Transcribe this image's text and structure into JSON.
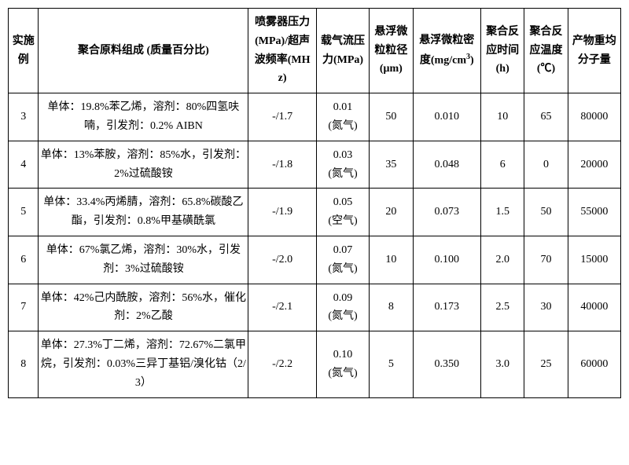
{
  "headers": {
    "h1": "实施例",
    "h2": "聚合原料组成\n(质量百分比)",
    "h3": "喷雾器压力(MPa)/超声波频率(MHz)",
    "h4": "载气流压力(MPa)",
    "h5": "悬浮微粒粒径(μm)",
    "h6_a": "悬浮微粒密度(mg/cm",
    "h6_b": ")",
    "h7": "聚合反应时间(h)",
    "h8": "聚合反应温度(℃)",
    "h9": "产物重均分子量"
  },
  "rows": [
    {
      "id": "3",
      "comp": "单体：19.8%苯乙烯，溶剂：80%四氢呋喃，引发剂：0.2% AIBN",
      "press": "-/1.7",
      "gas": "0.01\n(氮气)",
      "diam": "50",
      "dens": "0.010",
      "time": "10",
      "temp": "65",
      "mw": "80000"
    },
    {
      "id": "4",
      "comp": "单体：13%苯胺，溶剂：85%水，引发剂：2%过硫酸铵",
      "press": "-/1.8",
      "gas": "0.03\n(氮气)",
      "diam": "35",
      "dens": "0.048",
      "time": "6",
      "temp": "0",
      "mw": "20000"
    },
    {
      "id": "5",
      "comp": "单体：33.4%丙烯腈，溶剂：65.8%碳酸乙酯，引发剂：0.8%甲基磺酰氯",
      "press": "-/1.9",
      "gas": "0.05\n(空气)",
      "diam": "20",
      "dens": "0.073",
      "time": "1.5",
      "temp": "50",
      "mw": "55000"
    },
    {
      "id": "6",
      "comp": "单体：67%氯乙烯，溶剂：30%水，引发剂：3%过硫酸铵",
      "press": "-/2.0",
      "gas": "0.07\n(氮气)",
      "diam": "10",
      "dens": "0.100",
      "time": "2.0",
      "temp": "70",
      "mw": "15000"
    },
    {
      "id": "7",
      "comp": "单体：42%己内酰胺，溶剂：56%水，催化剂：2%乙酸",
      "press": "-/2.1",
      "gas": "0.09\n(氮气)",
      "diam": "8",
      "dens": "0.173",
      "time": "2.5",
      "temp": "30",
      "mw": "40000"
    },
    {
      "id": "8",
      "comp": "单体：27.3%丁二烯，溶剂：72.67%二氯甲烷，引发剂：0.03%三异丁基铝/溴化钴（2/3）",
      "press": "-/2.2",
      "gas": "0.10\n(氮气)",
      "diam": "5",
      "dens": "0.350",
      "time": "3.0",
      "temp": "25",
      "mw": "60000"
    }
  ]
}
